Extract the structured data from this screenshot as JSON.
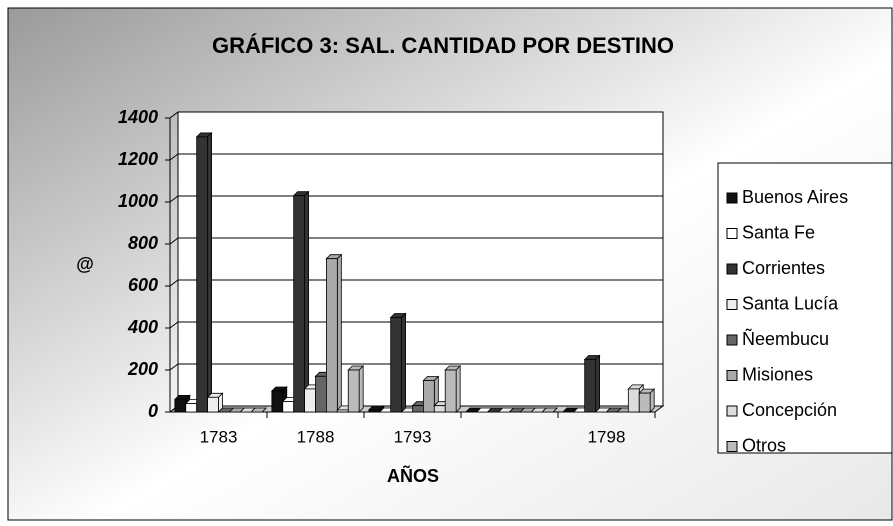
{
  "chart_data": {
    "type": "bar",
    "title": "GRÁFICO 3: SAL. CANTIDAD POR DESTINO",
    "y_label": "@",
    "x_label": "AÑOS",
    "categories": [
      "1783",
      "1788",
      "1793",
      null,
      "1798"
    ],
    "series": [
      {
        "name": "Buenos Aires",
        "color": "#111111",
        "values": [
          60,
          100,
          10,
          0,
          0
        ]
      },
      {
        "name": "Santa Fe",
        "color": "#ffffff",
        "values": [
          40,
          50,
          0,
          0,
          0
        ]
      },
      {
        "name": "Corrientes",
        "color": "#333333",
        "values": [
          1310,
          1030,
          450,
          0,
          250
        ]
      },
      {
        "name": "Santa Lucía",
        "color": "#eeeeee",
        "values": [
          70,
          110,
          0,
          0,
          0
        ]
      },
      {
        "name": "Ñeembucu",
        "color": "#666666",
        "values": [
          0,
          170,
          30,
          0,
          0
        ]
      },
      {
        "name": "Misiones",
        "color": "#aaaaaa",
        "values": [
          0,
          730,
          150,
          0,
          0
        ]
      },
      {
        "name": "Concepción",
        "color": "#dddddd",
        "values": [
          0,
          10,
          30,
          0,
          110
        ]
      },
      {
        "name": "Otros",
        "color": "#bbbbbb",
        "values": [
          0,
          200,
          200,
          0,
          90
        ]
      }
    ],
    "ylim": [
      0,
      1400
    ],
    "yticks": [
      0,
      200,
      400,
      600,
      800,
      1000,
      1200,
      1400
    ],
    "grid": true
  }
}
